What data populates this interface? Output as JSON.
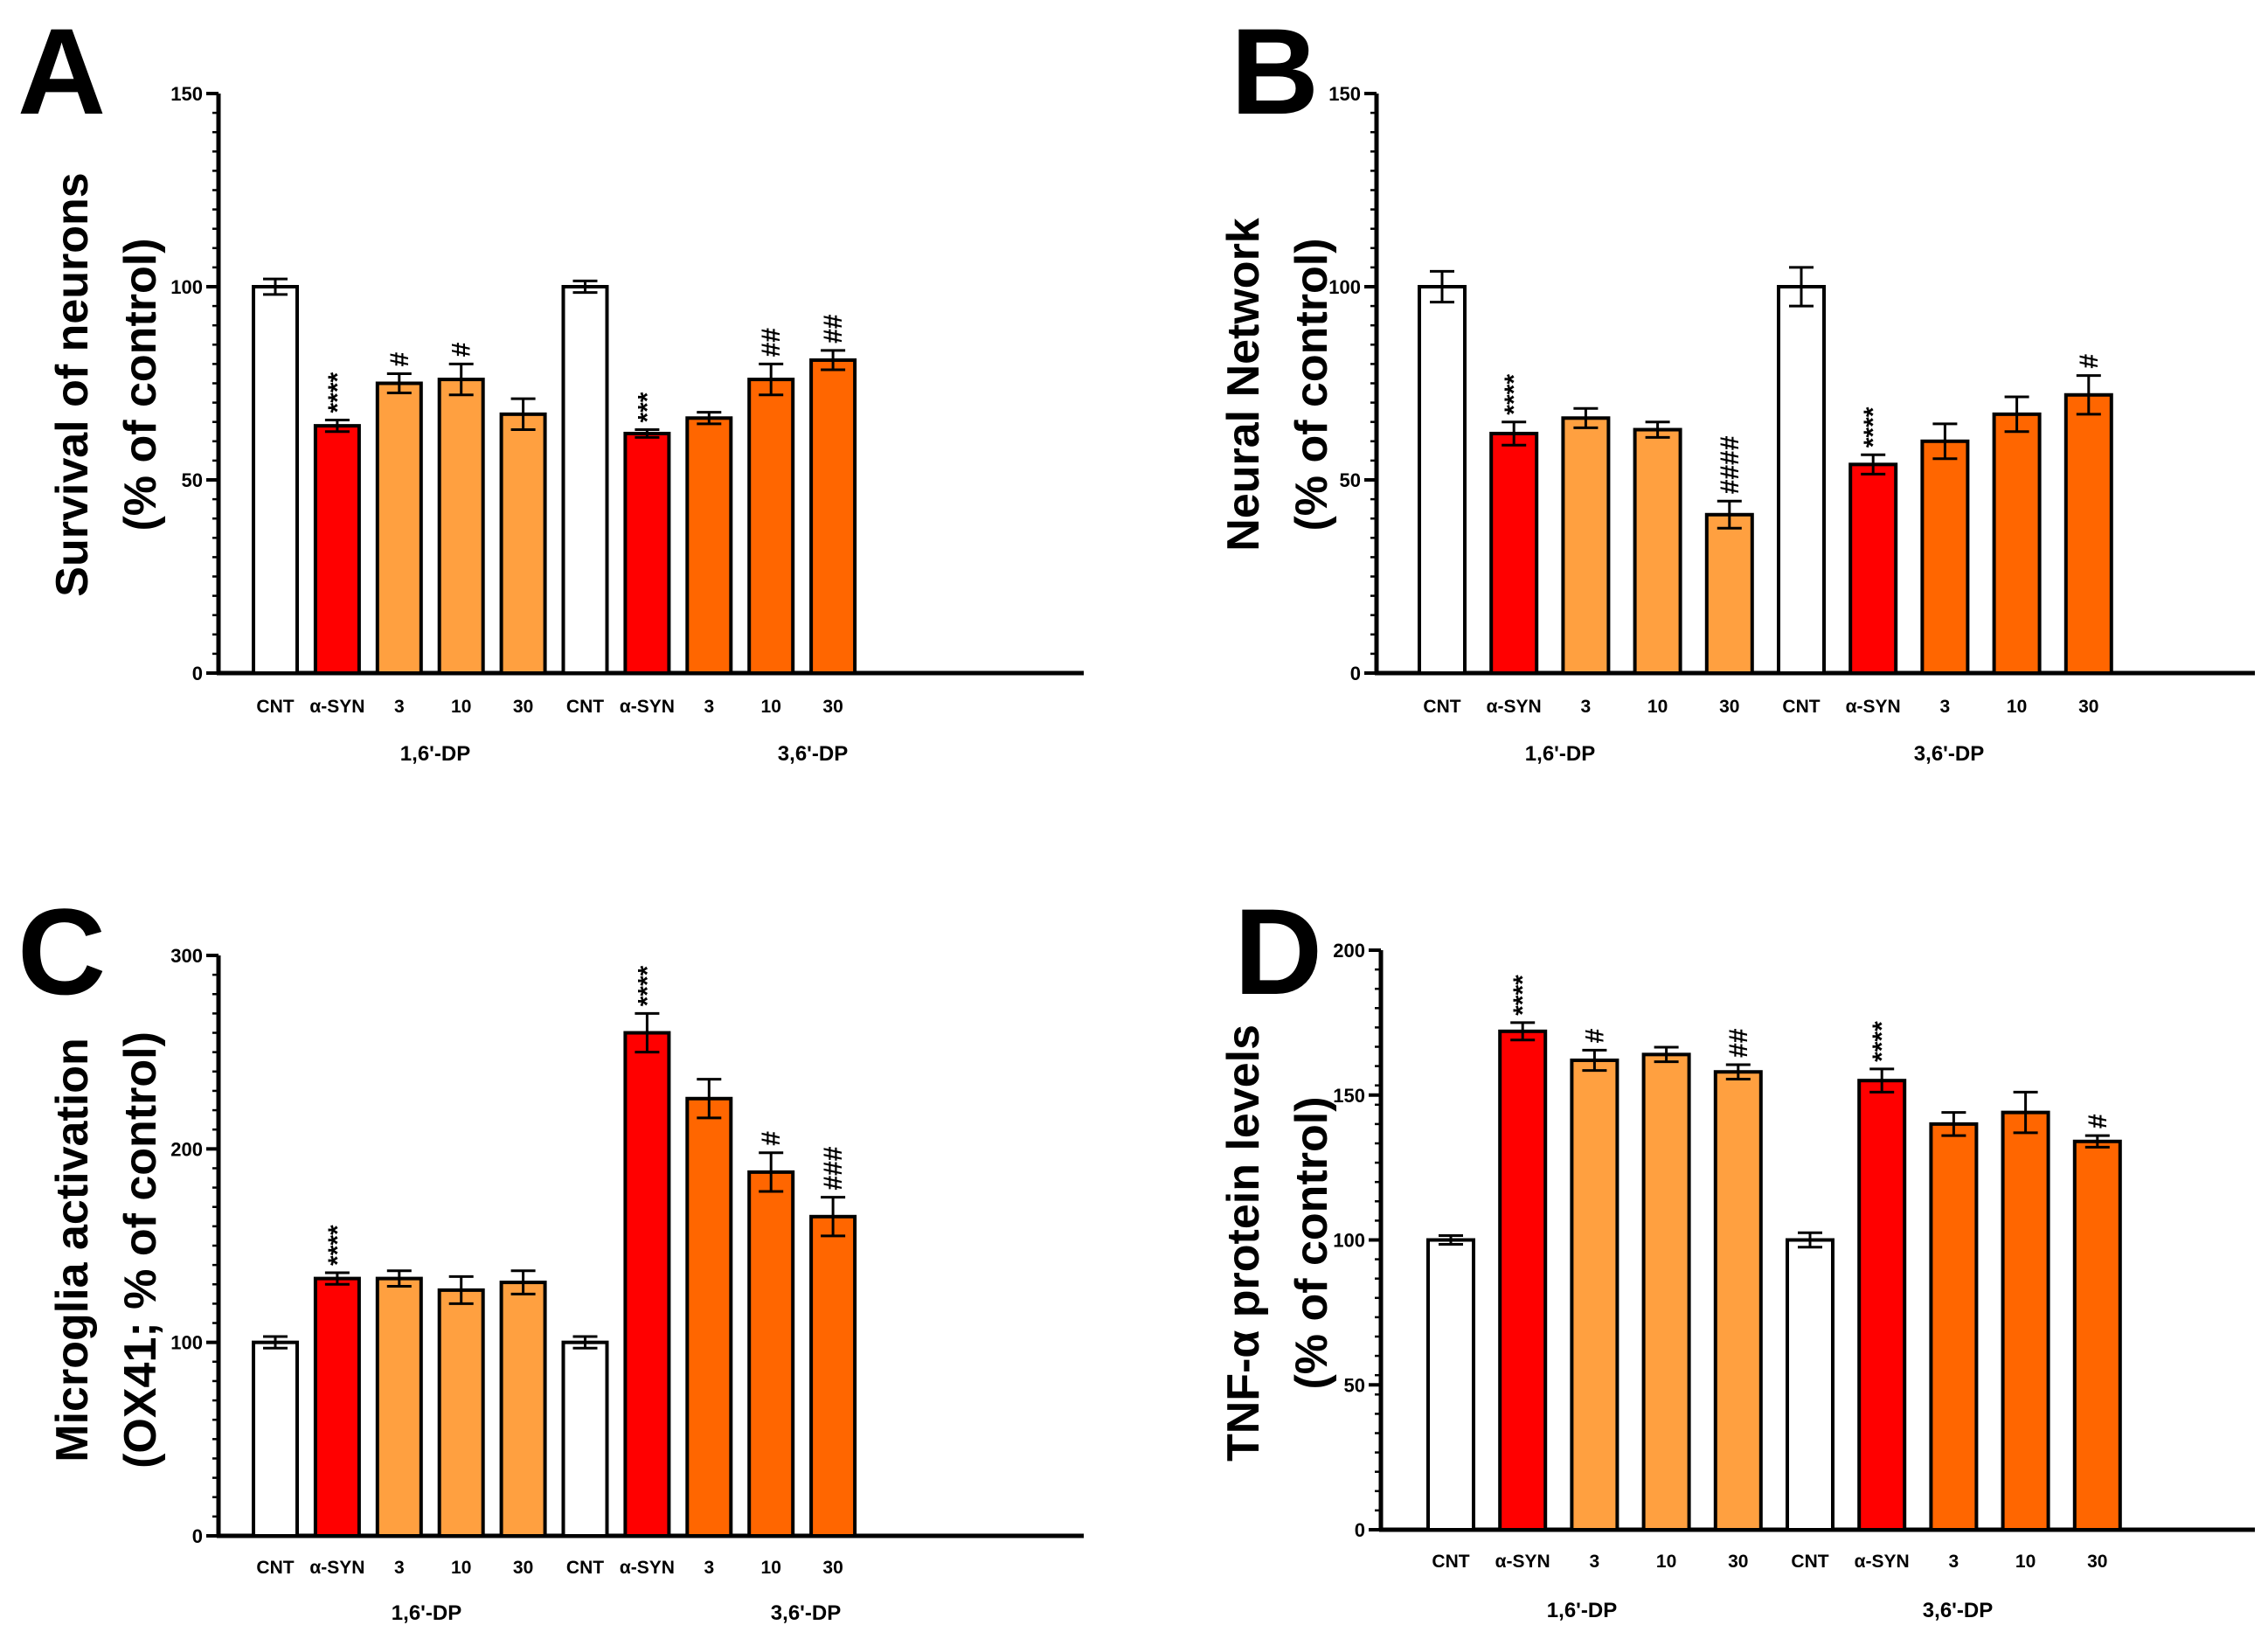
{
  "chart_data": [
    {
      "type": "bar",
      "panel": "A",
      "ylabel_line1": "Survival of neurons",
      "ylabel_line2": "(% of control)",
      "ylim": [
        0,
        150
      ],
      "yticks": [
        "0",
        "50",
        "100",
        "150"
      ],
      "groups": [
        "1,6'-DP",
        "3,6'-DP"
      ],
      "bars": [
        {
          "label": "CNT",
          "value": 100,
          "err": 2,
          "color": "#ffffff",
          "sig": ""
        },
        {
          "label": "α-SYN",
          "value": 64,
          "err": 1.5,
          "color": "#ff0000",
          "sig": "****"
        },
        {
          "label": "3",
          "value": 75,
          "err": 2.5,
          "color": "#ffa040",
          "sig": "#"
        },
        {
          "label": "10",
          "value": 76,
          "err": 4,
          "color": "#ffa040",
          "sig": "#"
        },
        {
          "label": "30",
          "value": 67,
          "err": 4,
          "color": "#ffa040",
          "sig": ""
        },
        {
          "label": "CNT",
          "value": 100,
          "err": 1.5,
          "color": "#ffffff",
          "sig": ""
        },
        {
          "label": "α-SYN",
          "value": 62,
          "err": 1,
          "color": "#ff0000",
          "sig": "***"
        },
        {
          "label": "3",
          "value": 66,
          "err": 1.5,
          "color": "#ff6600",
          "sig": ""
        },
        {
          "label": "10",
          "value": 76,
          "err": 4,
          "color": "#ff6600",
          "sig": "##"
        },
        {
          "label": "30",
          "value": 81,
          "err": 2.5,
          "color": "#ff6600",
          "sig": "##"
        }
      ]
    },
    {
      "type": "bar",
      "panel": "B",
      "ylabel_line1": "Neural Network",
      "ylabel_line2": "(% of control)",
      "ylim": [
        0,
        150
      ],
      "yticks": [
        "0",
        "50",
        "100",
        "150"
      ],
      "groups": [
        "1,6'-DP",
        "3,6'-DP"
      ],
      "bars": [
        {
          "label": "CNT",
          "value": 100,
          "err": 4,
          "color": "#ffffff",
          "sig": ""
        },
        {
          "label": "α-SYN",
          "value": 62,
          "err": 3,
          "color": "#ff0000",
          "sig": "****"
        },
        {
          "label": "3",
          "value": 66,
          "err": 2.5,
          "color": "#ffa040",
          "sig": ""
        },
        {
          "label": "10",
          "value": 63,
          "err": 2,
          "color": "#ffa040",
          "sig": ""
        },
        {
          "label": "30",
          "value": 41,
          "err": 3.5,
          "color": "#ffa040",
          "sig": "####"
        },
        {
          "label": "CNT",
          "value": 100,
          "err": 5,
          "color": "#ffffff",
          "sig": ""
        },
        {
          "label": "α-SYN",
          "value": 54,
          "err": 2.5,
          "color": "#ff0000",
          "sig": "****"
        },
        {
          "label": "3",
          "value": 60,
          "err": 4.5,
          "color": "#ff6600",
          "sig": ""
        },
        {
          "label": "10",
          "value": 67,
          "err": 4.5,
          "color": "#ff6600",
          "sig": ""
        },
        {
          "label": "30",
          "value": 72,
          "err": 5,
          "color": "#ff6600",
          "sig": "#"
        }
      ]
    },
    {
      "type": "bar",
      "panel": "C",
      "ylabel_line1": "Microglia activation",
      "ylabel_line2": "(OX41; % of control)",
      "ylim": [
        0,
        300
      ],
      "yticks": [
        "0",
        "100",
        "200",
        "300"
      ],
      "groups": [
        "1,6'-DP",
        "3,6'-DP"
      ],
      "bars": [
        {
          "label": "CNT",
          "value": 100,
          "err": 3,
          "color": "#ffffff",
          "sig": ""
        },
        {
          "label": "α-SYN",
          "value": 133,
          "err": 3,
          "color": "#ff0000",
          "sig": "****"
        },
        {
          "label": "3",
          "value": 133,
          "err": 4,
          "color": "#ffa040",
          "sig": ""
        },
        {
          "label": "10",
          "value": 127,
          "err": 7,
          "color": "#ffa040",
          "sig": ""
        },
        {
          "label": "30",
          "value": 131,
          "err": 6,
          "color": "#ffa040",
          "sig": ""
        },
        {
          "label": "CNT",
          "value": 100,
          "err": 3,
          "color": "#ffffff",
          "sig": ""
        },
        {
          "label": "α-SYN",
          "value": 260,
          "err": 10,
          "color": "#ff0000",
          "sig": "****"
        },
        {
          "label": "3",
          "value": 226,
          "err": 10,
          "color": "#ff6600",
          "sig": ""
        },
        {
          "label": "10",
          "value": 188,
          "err": 10,
          "color": "#ff6600",
          "sig": "#"
        },
        {
          "label": "30",
          "value": 165,
          "err": 10,
          "color": "#ff6600",
          "sig": "###"
        }
      ]
    },
    {
      "type": "bar",
      "panel": "D",
      "ylabel_line1": "TNF-α protein levels",
      "ylabel_line2": "(% of control)",
      "ylim": [
        0,
        200
      ],
      "yticks": [
        "0",
        "50",
        "100",
        "150",
        "200"
      ],
      "groups": [
        "1,6'-DP",
        "3,6'-DP"
      ],
      "bars": [
        {
          "label": "CNT",
          "value": 100,
          "err": 1.5,
          "color": "#ffffff",
          "sig": ""
        },
        {
          "label": "α-SYN",
          "value": 172,
          "err": 3,
          "color": "#ff0000",
          "sig": "****"
        },
        {
          "label": "3",
          "value": 162,
          "err": 3.5,
          "color": "#ffa040",
          "sig": "#"
        },
        {
          "label": "10",
          "value": 164,
          "err": 2.5,
          "color": "#ffa040",
          "sig": ""
        },
        {
          "label": "30",
          "value": 158,
          "err": 2.5,
          "color": "#ffa040",
          "sig": "##"
        },
        {
          "label": "CNT",
          "value": 100,
          "err": 2.5,
          "color": "#ffffff",
          "sig": ""
        },
        {
          "label": "α-SYN",
          "value": 155,
          "err": 4,
          "color": "#ff0000",
          "sig": "****"
        },
        {
          "label": "3",
          "value": 140,
          "err": 4,
          "color": "#ff6600",
          "sig": ""
        },
        {
          "label": "10",
          "value": 144,
          "err": 7,
          "color": "#ff6600",
          "sig": ""
        },
        {
          "label": "30",
          "value": 134,
          "err": 2,
          "color": "#ff6600",
          "sig": "#"
        }
      ]
    }
  ]
}
